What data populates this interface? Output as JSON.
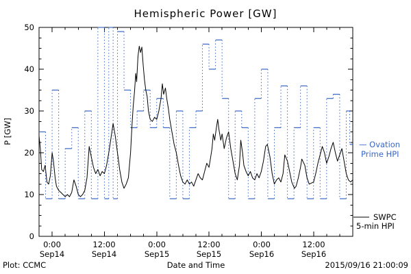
{
  "title": "Hemispheric Power [GW]",
  "ylabel": "P [GW]",
  "xlabel": "Date and Time",
  "footer_left": "Plot: CCMC",
  "footer_right": "2015/09/16 21:00:09",
  "legend": {
    "ovation_line1": "— Ovation",
    "ovation_line2": "Prime HPI",
    "swpc_line1": "SWPC",
    "swpc_line2": "5-min HPI",
    "ovation_color": "#3a66c4",
    "swpc_color": "#000000"
  },
  "chart_data": {
    "type": "line",
    "title": "Hemispheric Power [GW]",
    "xlabel": "Date and Time",
    "ylabel": "P [GW]",
    "ylim": [
      0,
      50
    ],
    "xlim": [
      0,
      72
    ],
    "x_unit": "hours",
    "yticks": [
      0,
      10,
      20,
      30,
      40,
      50
    ],
    "y_minor_tick": 2.5,
    "x_minor_tick_hours": 3,
    "x_major_tick_hours": 12,
    "grid": false,
    "legend_position": "right-outside",
    "xticks": [
      {
        "t": 3,
        "time": "0:00",
        "date": "Sep14"
      },
      {
        "t": 15,
        "time": "12:00",
        "date": "Sep14"
      },
      {
        "t": 27,
        "time": "0:00",
        "date": "Sep15"
      },
      {
        "t": 39,
        "time": "12:00",
        "date": "Sep15"
      },
      {
        "t": 51,
        "time": "0:00",
        "date": "Sep16"
      },
      {
        "t": 63,
        "time": "12:00",
        "date": "Sep16"
      }
    ],
    "series": [
      {
        "name": "SWPC 5-min HPI",
        "style": "line",
        "color": "#000000",
        "points": [
          [
            0,
            24
          ],
          [
            0.3,
            21
          ],
          [
            0.6,
            16
          ],
          [
            1,
            15.5
          ],
          [
            1.4,
            17
          ],
          [
            1.8,
            13
          ],
          [
            2.2,
            12.5
          ],
          [
            2.6,
            14.5
          ],
          [
            3,
            20
          ],
          [
            3.3,
            18
          ],
          [
            3.7,
            14
          ],
          [
            4,
            12
          ],
          [
            4.5,
            11
          ],
          [
            5,
            10.5
          ],
          [
            5.5,
            10
          ],
          [
            6,
            9.5
          ],
          [
            6.5,
            10
          ],
          [
            7,
            9.5
          ],
          [
            7.5,
            10.5
          ],
          [
            8,
            13.5
          ],
          [
            8.5,
            12
          ],
          [
            9,
            10
          ],
          [
            9.5,
            9.5
          ],
          [
            10,
            10
          ],
          [
            10.5,
            11
          ],
          [
            11,
            14
          ],
          [
            11.5,
            21.5
          ],
          [
            12,
            19
          ],
          [
            12.5,
            16.5
          ],
          [
            13,
            15
          ],
          [
            13.5,
            16
          ],
          [
            14,
            14.5
          ],
          [
            14.5,
            15.5
          ],
          [
            15,
            15
          ],
          [
            15.5,
            17
          ],
          [
            16,
            20
          ],
          [
            16.5,
            23.5
          ],
          [
            17,
            27
          ],
          [
            17.5,
            24
          ],
          [
            18,
            20
          ],
          [
            18.5,
            16
          ],
          [
            19,
            13
          ],
          [
            19.5,
            11.5
          ],
          [
            20,
            12.5
          ],
          [
            20.5,
            14
          ],
          [
            21,
            20
          ],
          [
            21.3,
            26
          ],
          [
            21.6,
            31
          ],
          [
            21.9,
            34.5
          ],
          [
            22.2,
            39
          ],
          [
            22.4,
            37
          ],
          [
            22.7,
            43
          ],
          [
            23,
            45.5
          ],
          [
            23.3,
            44
          ],
          [
            23.6,
            45.3
          ],
          [
            23.9,
            41
          ],
          [
            24.2,
            37.5
          ],
          [
            24.5,
            35
          ],
          [
            24.8,
            33.5
          ],
          [
            25.1,
            30
          ],
          [
            25.5,
            28
          ],
          [
            26,
            27.5
          ],
          [
            26.5,
            28.5
          ],
          [
            27,
            28
          ],
          [
            27.5,
            30
          ],
          [
            28,
            33
          ],
          [
            28.3,
            36.5
          ],
          [
            28.6,
            34
          ],
          [
            29,
            35.5
          ],
          [
            29.3,
            33
          ],
          [
            29.7,
            30.5
          ],
          [
            30,
            28
          ],
          [
            30.5,
            25
          ],
          [
            31,
            22
          ],
          [
            31.5,
            20
          ],
          [
            32,
            17
          ],
          [
            32.5,
            14.5
          ],
          [
            33,
            13
          ],
          [
            33.5,
            12.5
          ],
          [
            34,
            13.5
          ],
          [
            34.5,
            12.5
          ],
          [
            35,
            13
          ],
          [
            35.5,
            12
          ],
          [
            36,
            13.5
          ],
          [
            36.5,
            15
          ],
          [
            37,
            14
          ],
          [
            37.5,
            13.5
          ],
          [
            38,
            15.5
          ],
          [
            38.5,
            17.5
          ],
          [
            39,
            16.5
          ],
          [
            39.4,
            19
          ],
          [
            39.7,
            21
          ],
          [
            40,
            24.5
          ],
          [
            40.3,
            23
          ],
          [
            40.7,
            26
          ],
          [
            41,
            28
          ],
          [
            41.3,
            25.5
          ],
          [
            41.7,
            23
          ],
          [
            42,
            24.5
          ],
          [
            42.5,
            21
          ],
          [
            43,
            23.5
          ],
          [
            43.5,
            25
          ],
          [
            44,
            21
          ],
          [
            44.5,
            18
          ],
          [
            45,
            15
          ],
          [
            45.5,
            13.5
          ],
          [
            46,
            17
          ],
          [
            46.3,
            23
          ],
          [
            46.7,
            20
          ],
          [
            47,
            17
          ],
          [
            47.5,
            15.5
          ],
          [
            48,
            14.5
          ],
          [
            48.5,
            15.5
          ],
          [
            49,
            14
          ],
          [
            49.5,
            13.5
          ],
          [
            50,
            15
          ],
          [
            50.5,
            14
          ],
          [
            51,
            15.5
          ],
          [
            51.5,
            18
          ],
          [
            52,
            21.5
          ],
          [
            52.4,
            22
          ],
          [
            53,
            19
          ],
          [
            53.5,
            15
          ],
          [
            54,
            12.5
          ],
          [
            54.5,
            13.5
          ],
          [
            55,
            14
          ],
          [
            55.5,
            13
          ],
          [
            56,
            15
          ],
          [
            56.4,
            19.5
          ],
          [
            57,
            18
          ],
          [
            57.5,
            15.5
          ],
          [
            58,
            13
          ],
          [
            58.6,
            11.5
          ],
          [
            59,
            12
          ],
          [
            59.5,
            14
          ],
          [
            60,
            16.5
          ],
          [
            60.3,
            18.5
          ],
          [
            61,
            17
          ],
          [
            61.5,
            14
          ],
          [
            62,
            12.5
          ],
          [
            63,
            13
          ],
          [
            63.5,
            15
          ],
          [
            64,
            17.5
          ],
          [
            64.5,
            19.5
          ],
          [
            65,
            21.5
          ],
          [
            65.5,
            20
          ],
          [
            66,
            17.5
          ],
          [
            66.5,
            19
          ],
          [
            67,
            21
          ],
          [
            67.5,
            22.5
          ],
          [
            68,
            20
          ],
          [
            68.5,
            18
          ],
          [
            69,
            19.5
          ],
          [
            69.5,
            21
          ],
          [
            70,
            18
          ],
          [
            70.5,
            15
          ],
          [
            71,
            13.5
          ],
          [
            71.5,
            13
          ],
          [
            72,
            13.5
          ]
        ]
      },
      {
        "name": "Ovation Prime HPI",
        "style": "step",
        "color": "#3a66c4",
        "points": [
          [
            0,
            25
          ],
          [
            1.5,
            9
          ],
          [
            3,
            35
          ],
          [
            4.5,
            9
          ],
          [
            6,
            21
          ],
          [
            7.5,
            26
          ],
          [
            9,
            9
          ],
          [
            10.5,
            30
          ],
          [
            12,
            9
          ],
          [
            13.5,
            50
          ],
          [
            15,
            9
          ],
          [
            16,
            50
          ],
          [
            17,
            9
          ],
          [
            18,
            49
          ],
          [
            19.5,
            35
          ],
          [
            21,
            26
          ],
          [
            22.5,
            30
          ],
          [
            24,
            35
          ],
          [
            25.5,
            26
          ],
          [
            27,
            33
          ],
          [
            28.5,
            26
          ],
          [
            30,
            9
          ],
          [
            31.5,
            30
          ],
          [
            33,
            9
          ],
          [
            34.5,
            26
          ],
          [
            36,
            30
          ],
          [
            37.5,
            46
          ],
          [
            39,
            40
          ],
          [
            40.5,
            47
          ],
          [
            42,
            33
          ],
          [
            43.5,
            9
          ],
          [
            45,
            30
          ],
          [
            46.5,
            26
          ],
          [
            48,
            9
          ],
          [
            49.5,
            33
          ],
          [
            51,
            40
          ],
          [
            52.5,
            9
          ],
          [
            54,
            26
          ],
          [
            55.5,
            36
          ],
          [
            57,
            9
          ],
          [
            58.5,
            26
          ],
          [
            60,
            36
          ],
          [
            61.5,
            9
          ],
          [
            63,
            26
          ],
          [
            64.5,
            9
          ],
          [
            66,
            33
          ],
          [
            67.5,
            34
          ],
          [
            69,
            9
          ],
          [
            70.5,
            30
          ],
          [
            71.3,
            22
          ],
          [
            72,
            22
          ]
        ]
      }
    ]
  }
}
